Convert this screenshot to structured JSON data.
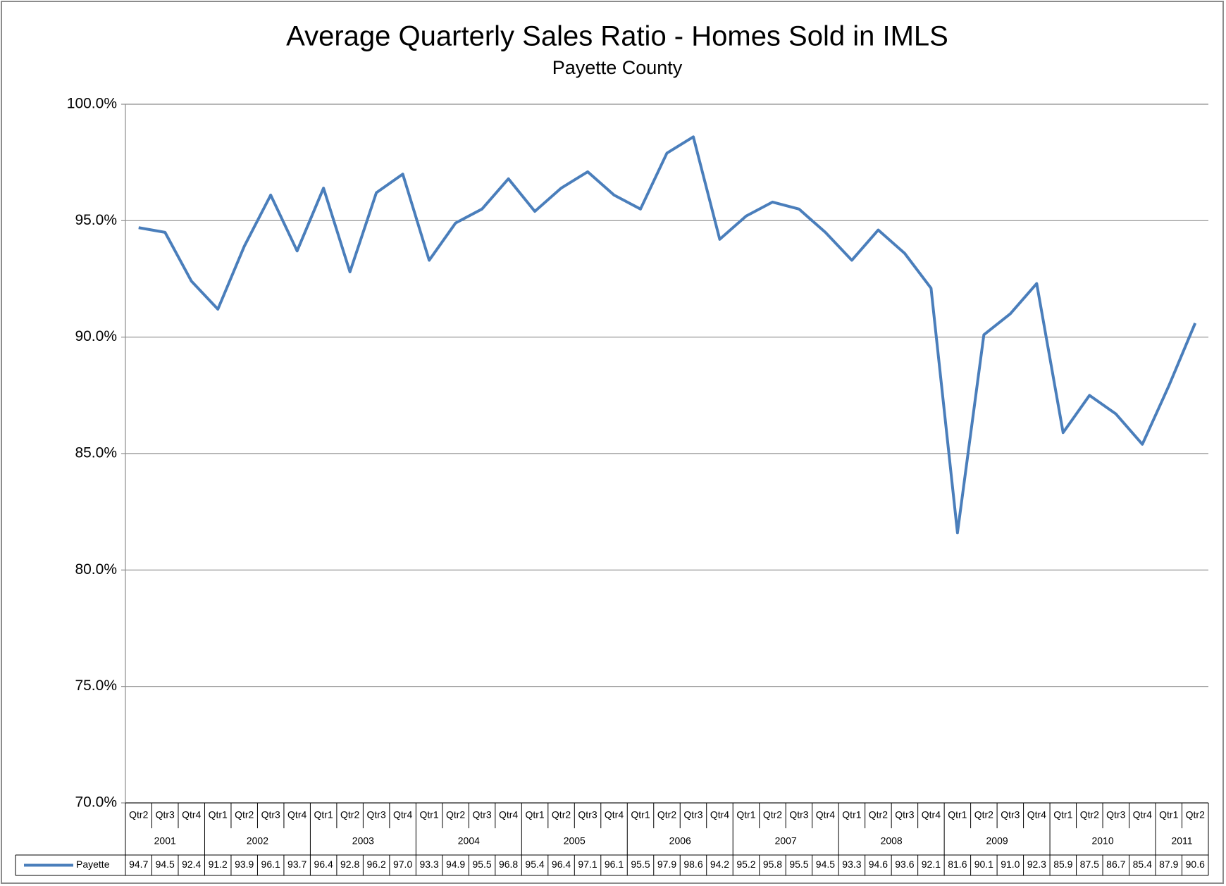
{
  "chart_data": {
    "type": "line",
    "title": "Average Quarterly Sales Ratio - Homes Sold in IMLS",
    "subtitle": "Payette County",
    "category_groups": [
      {
        "name": "2001",
        "categories": [
          "Qtr2",
          "Qtr3",
          "Qtr4"
        ]
      },
      {
        "name": "2002",
        "categories": [
          "Qtr1",
          "Qtr2",
          "Qtr3",
          "Qtr4"
        ]
      },
      {
        "name": "2003",
        "categories": [
          "Qtr1",
          "Qtr2",
          "Qtr3",
          "Qtr4"
        ]
      },
      {
        "name": "2004",
        "categories": [
          "Qtr1",
          "Qtr2",
          "Qtr3",
          "Qtr4"
        ]
      },
      {
        "name": "2005",
        "categories": [
          "Qtr1",
          "Qtr2",
          "Qtr3",
          "Qtr4"
        ]
      },
      {
        "name": "2006",
        "categories": [
          "Qtr1",
          "Qtr2",
          "Qtr3",
          "Qtr4"
        ]
      },
      {
        "name": "2007",
        "categories": [
          "Qtr1",
          "Qtr2",
          "Qtr3",
          "Qtr4"
        ]
      },
      {
        "name": "2008",
        "categories": [
          "Qtr1",
          "Qtr2",
          "Qtr3",
          "Qtr4"
        ]
      },
      {
        "name": "2009",
        "categories": [
          "Qtr1",
          "Qtr2",
          "Qtr3",
          "Qtr4"
        ]
      },
      {
        "name": "2010",
        "categories": [
          "Qtr1",
          "Qtr2",
          "Qtr3",
          "Qtr4"
        ]
      },
      {
        "name": "2011",
        "categories": [
          "Qtr1",
          "Qtr2"
        ]
      }
    ],
    "series": [
      {
        "name": "Payette",
        "color": "#4a7ebb",
        "values": [
          94.7,
          94.5,
          92.4,
          91.2,
          93.9,
          96.1,
          93.7,
          96.4,
          92.8,
          96.2,
          97.0,
          93.3,
          94.9,
          95.5,
          96.8,
          95.4,
          96.4,
          97.1,
          96.1,
          95.5,
          97.9,
          98.6,
          94.2,
          95.2,
          95.8,
          95.5,
          94.5,
          93.3,
          94.6,
          93.6,
          92.1,
          81.6,
          90.1,
          91.0,
          92.3,
          85.9,
          87.5,
          86.7,
          85.4,
          87.9,
          90.6
        ],
        "value_labels": [
          "94.7",
          "94.5",
          "92.4",
          "91.2",
          "93.9",
          "96.1",
          "93.7",
          "96.4",
          "92.8",
          "96.2",
          "97.0",
          "93.3",
          "94.9",
          "95.5",
          "96.8",
          "95.4",
          "96.4",
          "97.1",
          "96.1",
          "95.5",
          "97.9",
          "98.6",
          "94.2",
          "95.2",
          "95.8",
          "95.5",
          "94.5",
          "93.3",
          "94.6",
          "93.6",
          "92.1",
          "81.6",
          "90.1",
          "91.0",
          "92.3",
          "85.9",
          "87.5",
          "86.7",
          "85.4",
          "87.9",
          "90.6"
        ]
      }
    ],
    "ylim": [
      70,
      100
    ],
    "yticks": [
      {
        "value": 70,
        "label": "70.0%"
      },
      {
        "value": 75,
        "label": "75.0%"
      },
      {
        "value": 80,
        "label": "80.0%"
      },
      {
        "value": 85,
        "label": "85.0%"
      },
      {
        "value": 90,
        "label": "90.0%"
      },
      {
        "value": 95,
        "label": "95.0%"
      },
      {
        "value": 100,
        "label": "100.0%"
      }
    ],
    "grid": true,
    "data_table": true
  }
}
